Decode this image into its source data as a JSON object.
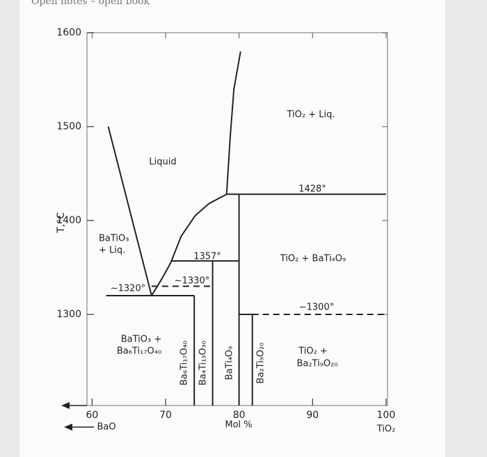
{
  "header": "Open notes – open book",
  "chart_data": {
    "type": "phase-diagram",
    "ylabel": "T,°C",
    "xlabel": "Mol %",
    "x_end_labels": [
      "BaO",
      "TiO₂"
    ],
    "xlim": [
      59.3,
      100.2
    ],
    "ylim": [
      1203,
      1600
    ],
    "xticks": [
      60,
      70,
      80,
      90,
      100
    ],
    "yticks": [
      1300,
      1400,
      1500,
      1600
    ],
    "boundaries": [
      {
        "x": [
          62.2,
          68.1
        ],
        "y": [
          1500,
          1320
        ],
        "dashed": false
      },
      {
        "x": [
          68.1,
          69.5,
          70.7,
          72.1,
          74.0,
          75.9,
          78.3
        ],
        "y": [
          1320,
          1338,
          1355,
          1383,
          1405,
          1418,
          1428
        ],
        "dashed": false
      },
      {
        "x": [
          78.3,
          78.8,
          79.3,
          80.2
        ],
        "y": [
          1428,
          1490,
          1540,
          1580
        ],
        "dashed": false
      },
      {
        "x": [
          78.3,
          100
        ],
        "y": [
          1428,
          1428
        ],
        "dashed": false
      },
      {
        "x": [
          70.7,
          80
        ],
        "y": [
          1357,
          1357
        ],
        "dashed": false
      },
      {
        "x": [
          68.1,
          76.4
        ],
        "y": [
          1330,
          1330
        ],
        "dashed": true
      },
      {
        "x": [
          61.9,
          73.9
        ],
        "y": [
          1320,
          1320
        ],
        "dashed": false
      },
      {
        "x": [
          73.9,
          73.9
        ],
        "y": [
          1320,
          1203
        ],
        "dashed": false
      },
      {
        "x": [
          76.4,
          76.4
        ],
        "y": [
          1357,
          1203
        ],
        "dashed": false
      },
      {
        "x": [
          80,
          80
        ],
        "y": [
          1428,
          1203
        ],
        "dashed": false
      },
      {
        "x": [
          80,
          81.8
        ],
        "y": [
          1300,
          1300
        ],
        "dashed": false
      },
      {
        "x": [
          81.8,
          81.8
        ],
        "y": [
          1300,
          1203
        ],
        "dashed": false
      },
      {
        "x": [
          81.8,
          100
        ],
        "y": [
          1300,
          1300
        ],
        "dashed": true
      }
    ],
    "regions": [
      "Liquid",
      "TiO₂ + Liq.",
      "BaTiO₃",
      "+ Liq.",
      "TiO₂ + BaTi₄O₉",
      "BaTiO₃ +",
      "Ba₆Ti₁₇O₄₀",
      "TiO₂ +",
      "Ba₂Ti₉O₂₀"
    ],
    "compounds": [
      "Ba₆Ti₁₇O₄₀",
      "Ba₄Ti₁₃O₃₀",
      "BaTi₄O₉",
      "Ba₂Ti₉O₂₀"
    ],
    "annotations": [
      "1428°",
      "1357°",
      "∼1330°",
      "∼1320°",
      "∼1300°"
    ]
  }
}
